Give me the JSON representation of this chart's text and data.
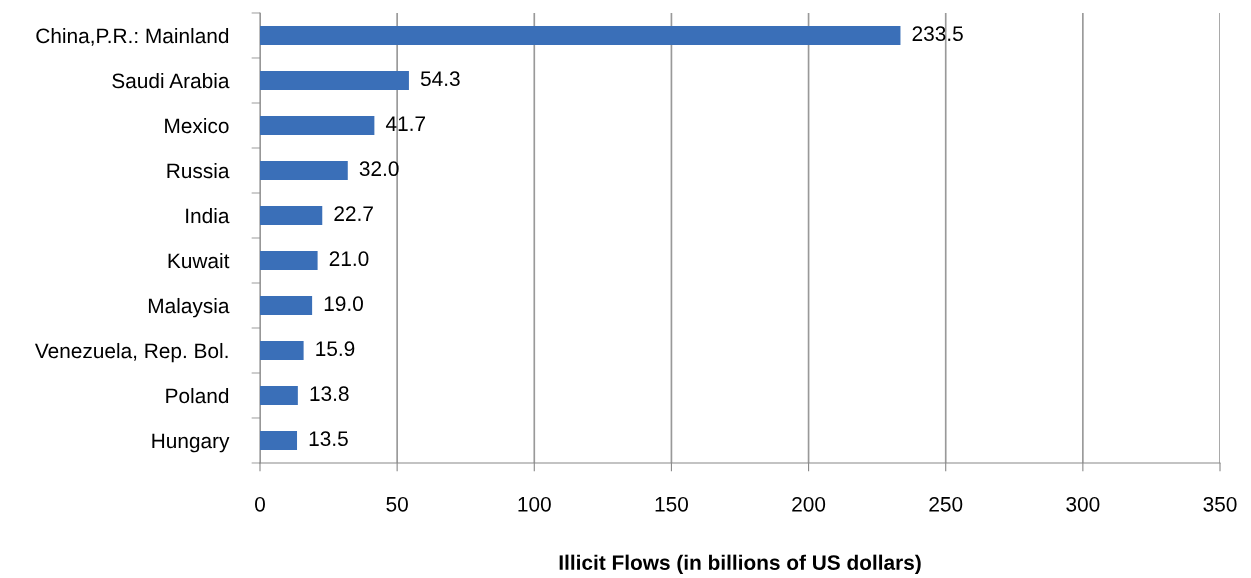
{
  "chart_data": {
    "type": "bar",
    "orientation": "horizontal",
    "xlabel": "Illicit Flows (in billions of US dollars)",
    "categories": [
      "China,P.R.: Mainland",
      "Saudi Arabia",
      "Mexico",
      "Russia",
      "India",
      "Kuwait",
      "Malaysia",
      "Venezuela, Rep. Bol.",
      "Poland",
      "Hungary"
    ],
    "values": [
      233.5,
      54.3,
      41.7,
      32.0,
      22.7,
      21.0,
      19.0,
      15.9,
      13.8,
      13.5
    ],
    "value_labels": [
      "233.5",
      "54.3",
      "41.7",
      "32.0",
      "22.7",
      "21.0",
      "19.0",
      "15.9",
      "13.8",
      "13.5"
    ],
    "color": "#3a6fb8",
    "xlim": [
      0,
      350
    ],
    "xticks": [
      0,
      50,
      100,
      150,
      200,
      250,
      300,
      350
    ],
    "grid": "x"
  }
}
